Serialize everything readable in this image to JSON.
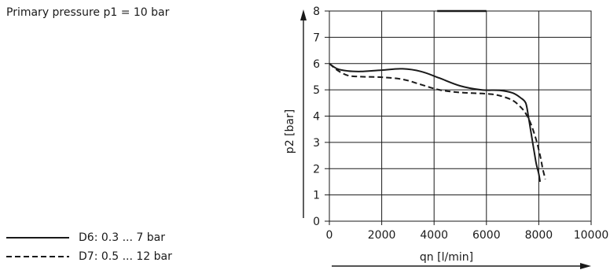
{
  "note": "Primary pressure p1 = 10 bar",
  "chart_data": {
    "type": "line",
    "title": "",
    "xlabel": "qn [l/min]",
    "ylabel": "p2 [bar]",
    "xlim": [
      0,
      10000
    ],
    "ylim": [
      0,
      8
    ],
    "xticks": [
      0,
      2000,
      4000,
      6000,
      8000,
      10000
    ],
    "yticks": [
      0,
      1,
      2,
      3,
      4,
      5,
      6,
      7,
      8
    ],
    "grid": true,
    "legend_position": "bottom-left, outside plot",
    "series": [
      {
        "name": "D6: 0.3 ... 7 bar",
        "style": "solid",
        "color": "#1a1a1a",
        "x": [
          0,
          300,
          700,
          1200,
          2000,
          2800,
          3500,
          4200,
          5000,
          5800,
          6500,
          7000,
          7300,
          7500,
          7600,
          7700,
          7800,
          7900,
          8000,
          8050
        ],
        "y": [
          6.0,
          5.8,
          5.72,
          5.7,
          5.75,
          5.8,
          5.7,
          5.45,
          5.15,
          5.0,
          4.98,
          4.88,
          4.7,
          4.5,
          4.0,
          3.4,
          2.8,
          2.2,
          1.8,
          1.5
        ]
      },
      {
        "name": "D7: 0.5 ... 12 bar",
        "style": "dashed",
        "color": "#1a1a1a",
        "x": [
          0,
          300,
          700,
          1200,
          2000,
          2800,
          3500,
          4200,
          5000,
          6000,
          6500,
          7000,
          7300,
          7500,
          7700,
          7900,
          8050,
          8150,
          8250
        ],
        "y": [
          6.0,
          5.75,
          5.55,
          5.5,
          5.48,
          5.4,
          5.2,
          5.0,
          4.9,
          4.85,
          4.78,
          4.6,
          4.35,
          4.1,
          3.7,
          3.1,
          2.5,
          2.0,
          1.6
        ]
      }
    ]
  }
}
